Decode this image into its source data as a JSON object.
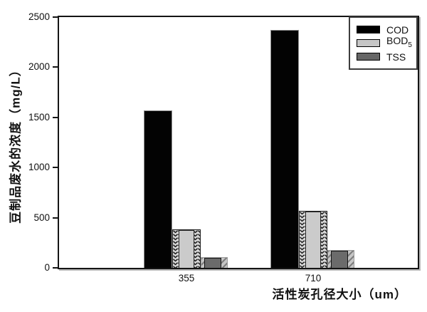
{
  "chart_data": {
    "type": "bar",
    "title": "",
    "categories": [
      "355",
      "710"
    ],
    "series": [
      {
        "name": "COD",
        "values": [
          1570,
          2370
        ],
        "color": "#000000",
        "fill": "solid"
      },
      {
        "name": "BOD5",
        "values": [
          380,
          570
        ],
        "color": "#c9c9c9",
        "fill": "light-gray solid with vertical chevron-pattern edges"
      },
      {
        "name": "TSS",
        "values": [
          110,
          180
        ],
        "color": "#6b6b6b",
        "fill": "dark-gray solid with diagonal-hatch edges"
      }
    ],
    "xlabel": "活性炭孔径大小（um）",
    "ylabel": "豆制品废水的浓度（mg/L）",
    "ylim": [
      0,
      2500
    ],
    "yticks": [
      0,
      500,
      1000,
      1500,
      2000,
      2500
    ],
    "grid": false,
    "legend_position": "top-right"
  },
  "legend": {
    "items": [
      {
        "label": "COD",
        "sub": "",
        "swatch": "#000000"
      },
      {
        "label": "BOD",
        "sub": "5",
        "swatch": "#c6c6c6"
      },
      {
        "label": "TSS",
        "sub": "",
        "swatch": "#666666"
      }
    ]
  }
}
